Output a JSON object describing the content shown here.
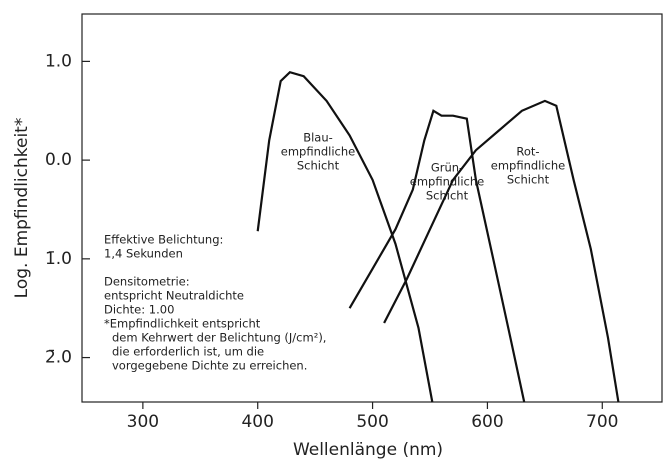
{
  "chart_data": {
    "type": "line",
    "xlabel": "Wellenlänge (nm)",
    "ylabel": "Log. Empfindlichkeit*",
    "xlim": [
      247,
      752
    ],
    "ylim": [
      -2.45,
      1.48
    ],
    "xticks": [
      300,
      400,
      500,
      600,
      700
    ],
    "yticks": [
      {
        "value": 1,
        "label": "1.0"
      },
      {
        "value": 0,
        "label": "0.0"
      },
      {
        "value": -1,
        "label": "1̄.0"
      },
      {
        "value": -2,
        "label": "2̄.0"
      }
    ],
    "series": [
      {
        "label": [
          "Blau-",
          "empfindliche",
          "Schicht"
        ],
        "color": "#111111",
        "x": [
          400,
          410,
          420,
          428,
          440,
          460,
          480,
          500,
          520,
          540,
          552
        ],
        "values": [
          -0.72,
          0.2,
          0.8,
          0.89,
          0.85,
          0.6,
          0.25,
          -0.2,
          -0.85,
          -1.7,
          -2.45
        ]
      },
      {
        "label": [
          "Grün-",
          "empfindliche",
          "Schicht"
        ],
        "color": "#111111",
        "x": [
          480,
          500,
          520,
          535,
          545,
          553,
          560,
          570,
          582,
          590,
          605,
          620,
          632
        ],
        "values": [
          -1.5,
          -1.1,
          -0.7,
          -0.3,
          0.2,
          0.5,
          0.45,
          0.45,
          0.42,
          -0.2,
          -1.0,
          -1.8,
          -2.45
        ]
      },
      {
        "label": [
          "Rot-",
          "empfindliche",
          "Schicht"
        ],
        "color": "#111111",
        "x": [
          510,
          530,
          550,
          570,
          590,
          610,
          630,
          650,
          660,
          675,
          690,
          705,
          714
        ],
        "values": [
          -1.65,
          -1.2,
          -0.7,
          -0.2,
          0.1,
          0.3,
          0.5,
          0.6,
          0.55,
          -0.2,
          -0.9,
          -1.8,
          -2.45
        ]
      }
    ],
    "annotations": [
      [
        "Effektive Belichtung:",
        "1,4 Sekunden"
      ],
      [
        "Densitometrie:",
        "entspricht Neutraldichte",
        "Dichte: 1.00",
        "*Empfindlichkeit entspricht",
        "dem Kehrwert der Belichtung (J/cm²),",
        "die erforderlich ist, um die",
        "vorgegebene Dichte zu erreichen."
      ]
    ]
  }
}
